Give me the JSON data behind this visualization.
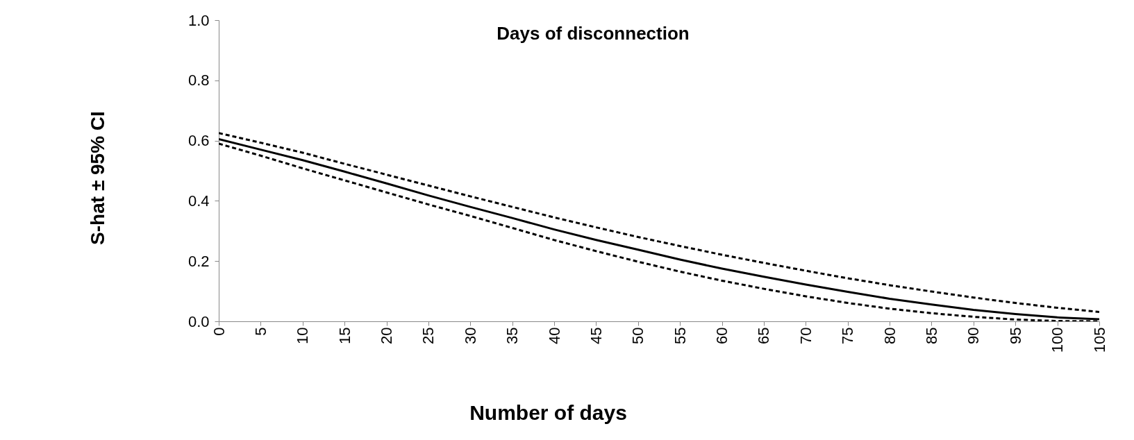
{
  "chart_data": {
    "type": "line",
    "title": "Days of disconnection",
    "xlabel": "Number of days",
    "ylabel": "S-hat ± 95% CI",
    "x": [
      0,
      5,
      10,
      15,
      20,
      25,
      30,
      35,
      40,
      45,
      50,
      55,
      60,
      65,
      70,
      75,
      80,
      85,
      90,
      95,
      100,
      105
    ],
    "series": [
      {
        "color": "#000000",
        "line_style": "solid",
        "values": [
          0.605,
          0.57,
          0.535,
          0.497,
          0.458,
          0.418,
          0.38,
          0.343,
          0.305,
          0.27,
          0.238,
          0.205,
          0.175,
          0.148,
          0.122,
          0.098,
          0.075,
          0.056,
          0.038,
          0.024,
          0.013,
          0.007
        ]
      },
      {
        "color": "#000000",
        "line_style": "dashed",
        "values": [
          0.625,
          0.593,
          0.56,
          0.523,
          0.487,
          0.451,
          0.415,
          0.38,
          0.345,
          0.312,
          0.28,
          0.25,
          0.221,
          0.194,
          0.168,
          0.143,
          0.12,
          0.099,
          0.079,
          0.061,
          0.045,
          0.031
        ]
      },
      {
        "color": "#000000",
        "line_style": "dashed",
        "values": [
          0.59,
          0.55,
          0.508,
          0.468,
          0.428,
          0.388,
          0.35,
          0.31,
          0.27,
          0.233,
          0.198,
          0.165,
          0.135,
          0.108,
          0.083,
          0.061,
          0.042,
          0.027,
          0.015,
          0.006,
          0.001,
          0.0
        ]
      }
    ],
    "xlim": [
      0,
      105
    ],
    "xticks": [
      0,
      5,
      10,
      15,
      20,
      25,
      30,
      35,
      40,
      45,
      50,
      55,
      60,
      65,
      70,
      75,
      80,
      85,
      90,
      95,
      100,
      105
    ],
    "ylim": [
      0,
      1
    ],
    "yticks": [
      {
        "value": 0,
        "label": "0.0"
      },
      {
        "value": 0.2,
        "label": "0.2"
      },
      {
        "value": 0.4,
        "label": "0.4"
      },
      {
        "value": 0.6,
        "label": "0.6"
      },
      {
        "value": 0.8,
        "label": "0.8"
      },
      {
        "value": 1,
        "label": "1.0"
      }
    ],
    "grid": false,
    "marker": "none"
  }
}
